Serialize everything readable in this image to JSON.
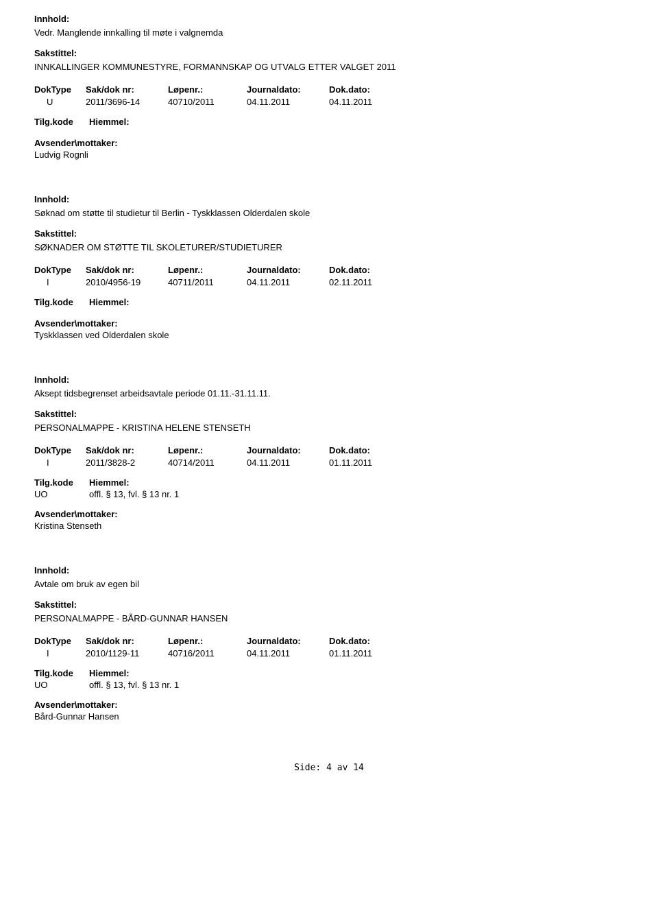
{
  "labels": {
    "innhold": "Innhold:",
    "sakstittel": "Sakstittel:",
    "doktype": "DokType",
    "saknr": "Sak/dok nr:",
    "lopenr": "Løpenr.:",
    "journaldato": "Journaldato:",
    "dokdato": "Dok.dato:",
    "tilgkode": "Tilg.kode",
    "hiemmel": "Hiemmel:",
    "avsender": "Avsender\\mottaker:"
  },
  "entries": [
    {
      "content": "Vedr. Manglende innkalling til møte i valgnemda",
      "caseTitle": "INNKALLINGER KOMMUNESTYRE, FORMANNSKAP OG UTVALG ETTER VALGET 2011",
      "doktype": "U",
      "saknr": "2011/3696-14",
      "lopenr": "40710/2011",
      "journaldato": "04.11.2011",
      "dokdato": "04.11.2011",
      "tilgcode": "",
      "hiemmel": "",
      "sender": "Ludvig Rognli"
    },
    {
      "content": "Søknad om støtte til studietur til Berlin - Tyskklassen Olderdalen skole",
      "caseTitle": "SØKNADER  OM STØTTE TIL SKOLETURER/STUDIETURER",
      "doktype": "I",
      "saknr": "2010/4956-19",
      "lopenr": "40711/2011",
      "journaldato": "04.11.2011",
      "dokdato": "02.11.2011",
      "tilgcode": "",
      "hiemmel": "",
      "sender": "Tyskklassen ved Olderdalen skole"
    },
    {
      "content": "Aksept tidsbegrenset arbeidsavtale periode 01.11.-31.11.11.",
      "caseTitle": "PERSONALMAPPE - KRISTINA HELENE STENSETH",
      "doktype": "I",
      "saknr": "2011/3828-2",
      "lopenr": "40714/2011",
      "journaldato": "04.11.2011",
      "dokdato": "01.11.2011",
      "tilgcode": "UO",
      "hiemmel": "offl. § 13, fvl. § 13 nr. 1",
      "sender": "Kristina Stenseth"
    },
    {
      "content": "Avtale om bruk av egen bil",
      "caseTitle": "PERSONALMAPPE - BÅRD-GUNNAR HANSEN",
      "doktype": "I",
      "saknr": "2010/1129-11",
      "lopenr": "40716/2011",
      "journaldato": "04.11.2011",
      "dokdato": "01.11.2011",
      "tilgcode": "UO",
      "hiemmel": "offl. § 13, fvl. § 13 nr. 1",
      "sender": "Bård-Gunnar Hansen"
    }
  ],
  "footer": "Side: 4 av 14"
}
